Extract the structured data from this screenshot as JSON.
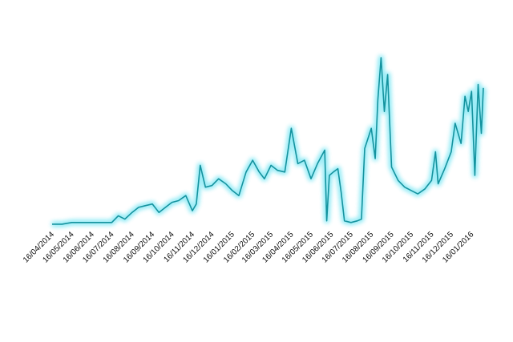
{
  "chart_data": {
    "type": "line",
    "x": [
      "16/04/2014",
      "01/05/2014",
      "16/05/2014",
      "01/06/2014",
      "16/06/2014",
      "01/07/2014",
      "16/07/2014",
      "26/07/2014",
      "05/08/2014",
      "16/08/2014",
      "26/08/2014",
      "05/09/2014",
      "16/09/2014",
      "26/09/2014",
      "06/10/2014",
      "16/10/2014",
      "26/10/2014",
      "06/11/2014",
      "16/11/2014",
      "22/11/2014",
      "28/11/2014",
      "06/12/2014",
      "16/12/2014",
      "26/12/2014",
      "06/01/2015",
      "16/01/2015",
      "26/01/2015",
      "06/02/2015",
      "16/02/2015",
      "26/02/2015",
      "06/03/2015",
      "16/03/2015",
      "26/03/2015",
      "06/04/2015",
      "16/04/2015",
      "26/04/2015",
      "06/05/2015",
      "16/05/2015",
      "26/05/2015",
      "06/06/2015",
      "09/06/2015",
      "13/06/2015",
      "19/06/2015",
      "26/06/2015",
      "01/07/2015",
      "06/07/2015",
      "16/07/2015",
      "26/07/2015",
      "01/08/2015",
      "06/08/2015",
      "16/08/2015",
      "22/08/2015",
      "26/08/2015",
      "31/08/2015",
      "05/09/2015",
      "10/09/2015",
      "16/09/2015",
      "26/09/2015",
      "06/10/2015",
      "16/10/2015",
      "26/10/2015",
      "06/11/2015",
      "16/11/2015",
      "22/11/2015",
      "26/11/2015",
      "06/12/2015",
      "16/12/2015",
      "22/12/2015",
      "31/12/2015",
      "06/01/2016",
      "11/01/2016",
      "16/01/2016",
      "21/01/2016",
      "26/01/2016",
      "31/01/2016",
      "03/02/2016"
    ],
    "series": [
      {
        "color": "#14939f",
        "values": [
          1,
          1,
          2,
          2,
          2,
          2,
          2,
          6,
          4,
          8,
          11,
          12,
          13,
          8,
          11,
          14,
          15,
          18,
          9,
          13,
          36,
          23,
          24,
          28,
          25,
          21,
          18,
          32,
          39,
          32,
          28,
          36,
          33,
          32,
          58,
          37,
          39,
          28,
          37,
          45,
          3,
          30,
          32,
          34,
          20,
          3,
          2,
          3,
          4,
          46,
          58,
          40,
          75,
          100,
          68,
          90,
          35,
          27,
          23,
          21,
          19,
          22,
          27,
          44,
          25,
          34,
          44,
          61,
          49,
          77,
          68,
          80,
          30,
          84,
          55,
          82
        ]
      }
    ],
    "glow_color": "#8feaf5",
    "xlim": [
      "16/04/2014",
      "03/02/2016"
    ],
    "xticks": [
      "16/04/2014",
      "16/05/2014",
      "16/06/2014",
      "16/07/2014",
      "16/08/2014",
      "16/09/2014",
      "16/10/2014",
      "16/11/2014",
      "16/12/2014",
      "16/01/2015",
      "16/02/2015",
      "16/03/2015",
      "16/04/2015",
      "16/05/2015",
      "16/06/2015",
      "16/07/2015",
      "16/08/2015",
      "16/09/2015",
      "16/10/2015",
      "16/11/2015",
      "16/12/2015",
      "16/01/2016"
    ],
    "ylim": [
      0,
      100
    ]
  }
}
